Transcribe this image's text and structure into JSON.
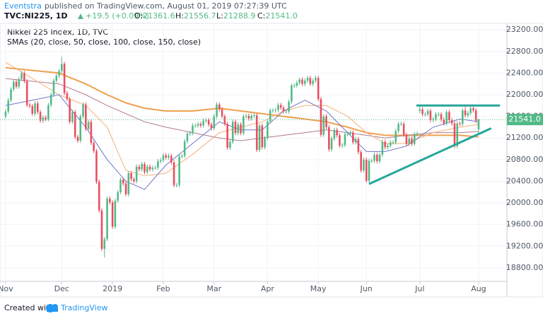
{
  "header": {
    "author": "Eventstra",
    "published": "published on TradingView.com, August 01, 2019 07:27:39 UTC",
    "symbol": "TVC:NI225, 1D",
    "change": "+19.5 (+0.09%)",
    "ohlc": [
      {
        "label": "O:",
        "value": "21361.6"
      },
      {
        "label": "H:",
        "value": "21556.7"
      },
      {
        "label": "L:",
        "value": "21288.9"
      },
      {
        "label": "C:",
        "value": "21541.0"
      }
    ]
  },
  "footer": {
    "created": "Created with",
    "brand": "TradingView"
  },
  "chart_data": {
    "type": "candlestick",
    "title": "Nikkei 225 Index, 1D, TVC",
    "subtitle": "SMAs (20, close, 50, close, 100, close, 150, close)",
    "colors": {
      "up": "#53b987",
      "down": "#eb4d5c"
    },
    "grid": true,
    "xlim": [
      -2.1,
      187.6
    ],
    "ylim": [
      18550,
      23320
    ],
    "xticks": [
      {
        "value": 0,
        "label": "Nov"
      },
      {
        "value": 21,
        "label": "Dec"
      },
      {
        "value": 40,
        "label": "2019"
      },
      {
        "value": 59,
        "label": "Feb"
      },
      {
        "value": 78,
        "label": "Mar"
      },
      {
        "value": 98,
        "label": "Apr"
      },
      {
        "value": 117,
        "label": "May"
      },
      {
        "value": 135,
        "label": "Jun"
      },
      {
        "value": 155,
        "label": "Jul"
      },
      {
        "value": 177,
        "label": "Aug"
      }
    ],
    "yticks": [
      {
        "value": 18800,
        "label": "18800.00"
      },
      {
        "value": 19200,
        "label": "19200.00"
      },
      {
        "value": 19600,
        "label": "19600.00"
      },
      {
        "value": 20000,
        "label": "20000.00"
      },
      {
        "value": 20400,
        "label": "20400.00"
      },
      {
        "value": 20800,
        "label": "20800.00"
      },
      {
        "value": 21200,
        "label": "21200.00"
      },
      {
        "value": 21600,
        "label": "21600.00"
      },
      {
        "value": 22000,
        "label": "22000.00"
      },
      {
        "value": 22400,
        "label": "22400.00"
      },
      {
        "value": 22800,
        "label": "22800.00"
      },
      {
        "value": 23200,
        "label": "23200.00"
      }
    ],
    "candles": [
      [
        21600,
        21730,
        21560,
        21690
      ],
      [
        21690,
        21940,
        21650,
        21900
      ],
      [
        21900,
        22140,
        21860,
        22100
      ],
      [
        22100,
        22280,
        22060,
        22240
      ],
      [
        22240,
        22280,
        22110,
        22150
      ],
      [
        22150,
        22330,
        22110,
        22290
      ],
      [
        22290,
        22440,
        22250,
        22400
      ],
      [
        22400,
        22440,
        22210,
        22250
      ],
      [
        22250,
        22290,
        21770,
        21810
      ],
      [
        21810,
        21850,
        21750,
        21790
      ],
      [
        21790,
        21830,
        21610,
        21650
      ],
      [
        21650,
        21880,
        21610,
        21840
      ],
      [
        21840,
        21880,
        21640,
        21680
      ],
      [
        21680,
        21720,
        21480,
        21520
      ],
      [
        21520,
        21620,
        21480,
        21580
      ],
      [
        21580,
        21620,
        21510,
        21550
      ],
      [
        21550,
        21850,
        21510,
        21810
      ],
      [
        21810,
        22040,
        21770,
        22000
      ],
      [
        22000,
        22300,
        21960,
        22260
      ],
      [
        22260,
        22390,
        22220,
        22350
      ],
      [
        22350,
        22480,
        22310,
        22440
      ],
      [
        22440,
        22700,
        22400,
        22570
      ],
      [
        22570,
        22610,
        21990,
        22030
      ],
      [
        22030,
        22070,
        21880,
        21920
      ],
      [
        21920,
        21960,
        21460,
        21500
      ],
      [
        21500,
        21720,
        21460,
        21680
      ],
      [
        21680,
        21720,
        21180,
        21220
      ],
      [
        21220,
        21260,
        21110,
        21150
      ],
      [
        21150,
        21640,
        21110,
        21600
      ],
      [
        21600,
        21860,
        21560,
        21820
      ],
      [
        21820,
        21860,
        21330,
        21370
      ],
      [
        21370,
        21540,
        21330,
        21500
      ],
      [
        21500,
        21540,
        21070,
        21110
      ],
      [
        21110,
        21150,
        20920,
        20960
      ],
      [
        20960,
        21000,
        20350,
        20390
      ],
      [
        20390,
        20430,
        19820,
        19860
      ],
      [
        19860,
        19900,
        19110,
        19150
      ],
      [
        19150,
        19370,
        18990,
        19330
      ],
      [
        19330,
        20120,
        19290,
        20080
      ],
      [
        20080,
        20120,
        19970,
        20010
      ],
      [
        20010,
        20050,
        19520,
        19560
      ],
      [
        19560,
        20080,
        19520,
        20040
      ],
      [
        20040,
        20240,
        20000,
        20200
      ],
      [
        20200,
        20470,
        20160,
        20430
      ],
      [
        20430,
        20470,
        20320,
        20360
      ],
      [
        20360,
        20400,
        20120,
        20160
      ],
      [
        20160,
        20590,
        20120,
        20550
      ],
      [
        20550,
        20590,
        20400,
        20440
      ],
      [
        20440,
        20480,
        20360,
        20400
      ],
      [
        20400,
        20710,
        20360,
        20670
      ],
      [
        20670,
        20710,
        20580,
        20620
      ],
      [
        20620,
        20760,
        20580,
        20720
      ],
      [
        20720,
        20760,
        20530,
        20570
      ],
      [
        20570,
        20710,
        20530,
        20670
      ],
      [
        20670,
        20710,
        20580,
        20620
      ],
      [
        20620,
        20690,
        20580,
        20650
      ],
      [
        20650,
        20690,
        20610,
        20650
      ],
      [
        20650,
        20810,
        20610,
        20770
      ],
      [
        20770,
        20830,
        20730,
        20790
      ],
      [
        20790,
        20920,
        20750,
        20880
      ],
      [
        20880,
        20920,
        20800,
        20840
      ],
      [
        20840,
        20910,
        20800,
        20870
      ],
      [
        20870,
        20910,
        20710,
        20750
      ],
      [
        20750,
        20790,
        20290,
        20330
      ],
      [
        20330,
        20370,
        20290,
        20330
      ],
      [
        20330,
        20900,
        20290,
        20860
      ],
      [
        20860,
        20910,
        20820,
        20870
      ],
      [
        20870,
        21180,
        20830,
        21140
      ],
      [
        21140,
        21320,
        21100,
        21280
      ],
      [
        21280,
        21330,
        21240,
        21290
      ],
      [
        21290,
        21470,
        21250,
        21430
      ],
      [
        21430,
        21470,
        21390,
        21430
      ],
      [
        21430,
        21500,
        21390,
        21460
      ],
      [
        21460,
        21500,
        21390,
        21430
      ],
      [
        21430,
        21560,
        21390,
        21520
      ],
      [
        21520,
        21570,
        21480,
        21530
      ],
      [
        21530,
        21570,
        21410,
        21450
      ],
      [
        21450,
        21490,
        21340,
        21380
      ],
      [
        21380,
        21640,
        21340,
        21600
      ],
      [
        21600,
        21860,
        21560,
        21820
      ],
      [
        21820,
        21860,
        21690,
        21730
      ],
      [
        21730,
        21770,
        21560,
        21600
      ],
      [
        21600,
        21640,
        21420,
        21460
      ],
      [
        21460,
        21500,
        20980,
        21020
      ],
      [
        21020,
        21170,
        20980,
        21130
      ],
      [
        21130,
        21540,
        21090,
        21500
      ],
      [
        21500,
        21540,
        21250,
        21290
      ],
      [
        21290,
        21490,
        21250,
        21450
      ],
      [
        21450,
        21490,
        21250,
        21290
      ],
      [
        21290,
        21640,
        21250,
        21600
      ],
      [
        21600,
        21650,
        21560,
        21610
      ],
      [
        21610,
        21650,
        21520,
        21560
      ],
      [
        21560,
        21650,
        21520,
        21610
      ],
      [
        21610,
        21660,
        21570,
        21620
      ],
      [
        21620,
        21660,
        20940,
        20980
      ],
      [
        20980,
        21470,
        20940,
        21430
      ],
      [
        21430,
        21470,
        20990,
        21030
      ],
      [
        21030,
        21240,
        20990,
        21200
      ],
      [
        21200,
        21550,
        21160,
        21510
      ],
      [
        21510,
        21750,
        21470,
        21710
      ],
      [
        21710,
        21750,
        21670,
        21710
      ],
      [
        21710,
        21760,
        21670,
        21720
      ],
      [
        21720,
        21850,
        21680,
        21810
      ],
      [
        21810,
        21850,
        21720,
        21760
      ],
      [
        21760,
        21800,
        21650,
        21690
      ],
      [
        21690,
        21730,
        21650,
        21690
      ],
      [
        21690,
        21910,
        21650,
        21870
      ],
      [
        21870,
        22210,
        21830,
        22170
      ],
      [
        22170,
        22210,
        22130,
        22170
      ],
      [
        22170,
        22260,
        22130,
        22220
      ],
      [
        22220,
        22320,
        22180,
        22280
      ],
      [
        22280,
        22320,
        22160,
        22200
      ],
      [
        22200,
        22300,
        22160,
        22260
      ],
      [
        22260,
        22350,
        22220,
        22310
      ],
      [
        22310,
        22350,
        22160,
        22200
      ],
      [
        22200,
        22300,
        22160,
        22260
      ],
      [
        22260,
        22350,
        22220,
        22310
      ],
      [
        22310,
        22350,
        21880,
        21920
      ],
      [
        21920,
        21960,
        21220,
        21260
      ],
      [
        21260,
        21640,
        21220,
        21600
      ],
      [
        21600,
        21640,
        21360,
        21400
      ],
      [
        21400,
        21440,
        20950,
        20990
      ],
      [
        20990,
        21230,
        20950,
        21190
      ],
      [
        21190,
        21390,
        21150,
        21350
      ],
      [
        21350,
        21390,
        21210,
        21250
      ],
      [
        21250,
        21290,
        21020,
        21060
      ],
      [
        21060,
        21110,
        21020,
        21070
      ],
      [
        21070,
        21310,
        21030,
        21270
      ],
      [
        21270,
        21320,
        21230,
        21280
      ],
      [
        21280,
        21340,
        21240,
        21300
      ],
      [
        21300,
        21340,
        21080,
        21120
      ],
      [
        21120,
        21220,
        21080,
        21180
      ],
      [
        21180,
        21220,
        20900,
        20940
      ],
      [
        20940,
        20980,
        20560,
        20600
      ],
      [
        20600,
        20840,
        20560,
        20800
      ],
      [
        20800,
        20840,
        20370,
        20410
      ],
      [
        20410,
        20820,
        20370,
        20780
      ],
      [
        20780,
        20820,
        20740,
        20780
      ],
      [
        20780,
        20930,
        20740,
        20890
      ],
      [
        20890,
        20930,
        20730,
        20770
      ],
      [
        20770,
        20930,
        20730,
        20890
      ],
      [
        20890,
        21170,
        20850,
        21130
      ],
      [
        21130,
        21170,
        20990,
        21030
      ],
      [
        21030,
        21100,
        20990,
        21060
      ],
      [
        21060,
        21160,
        21020,
        21120
      ],
      [
        21120,
        21160,
        21080,
        21120
      ],
      [
        21120,
        21370,
        21080,
        21330
      ],
      [
        21330,
        21500,
        21290,
        21460
      ],
      [
        21460,
        21500,
        21420,
        21460
      ],
      [
        21460,
        21500,
        21220,
        21260
      ],
      [
        21260,
        21300,
        21050,
        21090
      ],
      [
        21090,
        21230,
        21050,
        21190
      ],
      [
        21190,
        21230,
        21050,
        21090
      ],
      [
        21090,
        21310,
        21050,
        21270
      ],
      [
        21270,
        21320,
        21230,
        21280
      ],
      [
        21700,
        21780,
        21660,
        21730
      ],
      [
        21730,
        21770,
        21600,
        21640
      ],
      [
        21640,
        21680,
        21600,
        21640
      ],
      [
        21640,
        21740,
        21600,
        21700
      ],
      [
        21700,
        21740,
        21490,
        21530
      ],
      [
        21530,
        21590,
        21490,
        21550
      ],
      [
        21550,
        21680,
        21510,
        21640
      ],
      [
        21640,
        21680,
        21600,
        21640
      ],
      [
        21640,
        21680,
        21500,
        21540
      ],
      [
        21540,
        21580,
        21430,
        21470
      ],
      [
        21470,
        21720,
        21430,
        21680
      ],
      [
        21680,
        21720,
        21490,
        21530
      ],
      [
        21530,
        21570,
        21430,
        21470
      ],
      [
        21470,
        21510,
        21010,
        21050
      ],
      [
        21050,
        21510,
        21010,
        21470
      ],
      [
        21470,
        21510,
        21420,
        21460
      ],
      [
        21460,
        21750,
        21420,
        21710
      ],
      [
        21710,
        21800,
        21580,
        21620
      ],
      [
        21620,
        21700,
        21580,
        21660
      ],
      [
        21660,
        21790,
        21620,
        21750
      ],
      [
        21750,
        21790,
        21670,
        21710
      ],
      [
        21710,
        21750,
        21480,
        21520
      ],
      [
        21361.6,
        21556.7,
        21288.9,
        21541.0
      ]
    ],
    "series": [
      {
        "color": "#f0a050",
        "width": 2,
        "x": [
          0,
          20,
          30,
          38,
          45,
          52,
          60,
          70,
          80,
          88,
          96,
          104,
          112,
          120,
          128,
          135,
          142,
          150,
          160,
          170,
          177
        ],
        "values": [
          22500,
          22400,
          22200,
          22000,
          21850,
          21750,
          21700,
          21700,
          21750,
          21700,
          21650,
          21600,
          21550,
          21500,
          21400,
          21300,
          21250,
          21250,
          21250,
          21250,
          21220
        ]
      },
      {
        "color": "#b07a8c",
        "width": 1,
        "x": [
          0,
          20,
          30,
          38,
          45,
          52,
          60,
          70,
          80,
          88,
          96,
          104,
          112,
          120,
          128,
          135,
          142,
          150,
          160,
          170,
          177
        ],
        "values": [
          22300,
          22200,
          22000,
          21800,
          21650,
          21500,
          21400,
          21300,
          21200,
          21150,
          21200,
          21250,
          21300,
          21350,
          21300,
          21250,
          21200,
          21250,
          21300,
          21300,
          21320
        ]
      },
      {
        "color": "#f5b07a",
        "width": 1,
        "x": [
          0,
          20,
          30,
          38,
          45,
          52,
          60,
          70,
          80,
          88,
          96,
          104,
          112,
          120,
          128,
          135,
          142,
          150,
          160,
          170,
          177
        ],
        "values": [
          22600,
          22000,
          21800,
          21400,
          20600,
          20500,
          20550,
          20900,
          21300,
          21400,
          21500,
          21700,
          21800,
          21800,
          21600,
          21300,
          21100,
          21100,
          21300,
          21400,
          21450
        ]
      },
      {
        "color": "#6f74c9",
        "width": 1,
        "x": [
          0,
          10,
          20,
          30,
          38,
          45,
          52,
          60,
          70,
          80,
          88,
          96,
          104,
          112,
          120,
          128,
          135,
          142,
          150,
          160,
          170,
          177
        ],
        "values": [
          21800,
          21900,
          22000,
          21400,
          20800,
          20400,
          20250,
          20700,
          21100,
          21500,
          21350,
          21350,
          21700,
          21900,
          21700,
          21300,
          20950,
          20950,
          21050,
          21400,
          21550,
          21500
        ]
      }
    ],
    "trendlines": [
      {
        "color": "#26a69a",
        "x": [
          136,
          181.7
        ],
        "values": [
          20350,
          21380
        ]
      },
      {
        "color": "#26a69a",
        "x": [
          153.7,
          185
        ],
        "values": [
          21800,
          21800
        ]
      }
    ],
    "last_price": {
      "value": 21541,
      "label": "21541.0",
      "color": "#53b987"
    }
  }
}
